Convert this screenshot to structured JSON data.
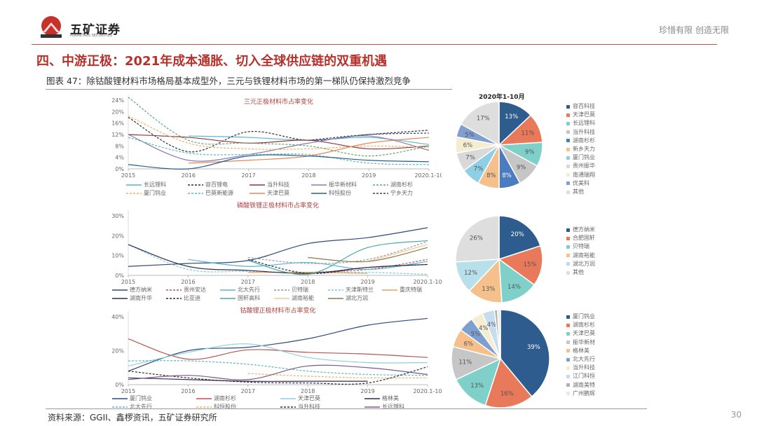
{
  "header": {
    "brand": "五矿证券",
    "brand_en": "MINMETALS SECURITIES",
    "slogan": "珍惜有限  创造无限",
    "title": "四、中游正极：2021年成本通胀、切入全球供应链的双重机遇",
    "subtitle": "图表 47：除钴酸锂材料市场格局基本成型外，三元与铁锂材料市场的第一梯队仍保持激烈竞争"
  },
  "footer": {
    "source": "资料来源：GGII、鑫椤资讯，五矿证券研究所",
    "page": "30"
  },
  "chart_data": [
    {
      "type": "line",
      "title": "三元正极材料市占率变化",
      "categories": [
        "2015",
        "2016",
        "2017",
        "2018",
        "2019",
        "2020.1-10"
      ],
      "yticks": [
        "0%",
        "4%",
        "8%",
        "12%",
        "16%",
        "20%",
        "24%"
      ],
      "ylim": [
        0,
        24
      ],
      "grid": false,
      "legend": "bottom",
      "series": [
        {
          "name": "长远锂科",
          "color": "#5ab4d6",
          "dash": false,
          "values": [
            null,
            11.5,
            11,
            10,
            11,
            8.5
          ]
        },
        {
          "name": "容百锂电",
          "color": "#2b2b3a",
          "dash": true,
          "values": [
            18,
            6,
            13,
            10,
            12,
            13.5
          ]
        },
        {
          "name": "当升科技",
          "color": "#8b3a3a",
          "dash": false,
          "values": [
            12,
            11,
            9,
            10,
            7,
            8
          ]
        },
        {
          "name": "振华新材料",
          "color": "#8a7bb0",
          "dash": false,
          "values": [
            12,
            3,
            5,
            9,
            11.5,
            6.5
          ]
        },
        {
          "name": "湖南杉杉",
          "color": "#5aa870",
          "dash": true,
          "values": [
            25,
            10,
            9,
            8,
            4.5,
            8
          ]
        },
        {
          "name": "厦门钨业",
          "color": "#f0b060",
          "dash": true,
          "values": [
            18.5,
            9,
            7,
            7,
            8,
            7.5
          ]
        },
        {
          "name": "巴莫新能源",
          "color": "#5fb8c0",
          "dash": true,
          "values": [
            11,
            5.5,
            5,
            5,
            2,
            1.5
          ]
        },
        {
          "name": "天津巴莫",
          "color": "#e8875a",
          "dash": false,
          "values": [
            null,
            2,
            3,
            4.5,
            9,
            11
          ]
        },
        {
          "name": "科恒股份",
          "color": "#2a5f8a",
          "dash": false,
          "values": [
            1.5,
            0,
            4.5,
            4.5,
            3,
            2.5
          ]
        },
        {
          "name": "宁乡天力",
          "color": "#3a3f6a",
          "dash": true,
          "values": [
            null,
            null,
            null,
            10,
            12,
            12.5
          ]
        }
      ]
    },
    {
      "type": "line",
      "title": "磷酸铁锂正极材料市占率变化",
      "categories": [
        "2015",
        "2016",
        "2017",
        "2018",
        "2019",
        "2020.1-10"
      ],
      "yticks": [
        "0%",
        "10%",
        "20%",
        "30%"
      ],
      "ylim": [
        0,
        30
      ],
      "grid": false,
      "legend": "bottom",
      "series": [
        {
          "name": "德方纳米",
          "color": "#2e4a7a",
          "dash": false,
          "values": [
            4.5,
            6,
            7.5,
            16,
            19,
            24
          ]
        },
        {
          "name": "贵州安达",
          "color": "#c0504d",
          "dash": true,
          "values": [
            null,
            null,
            null,
            1.5,
            3,
            8
          ]
        },
        {
          "name": "北大先行",
          "color": "#5ab4d6",
          "dash": false,
          "values": [
            null,
            8,
            4.5,
            6.5,
            3,
            7
          ]
        },
        {
          "name": "贝特瑞",
          "color": "#999999",
          "dash": true,
          "values": [
            null,
            null,
            9,
            6,
            8,
            17
          ]
        },
        {
          "name": "天津斯特兰",
          "color": "#7fc8d8",
          "dash": true,
          "values": [
            15.5,
            3,
            2,
            1.5,
            1.5,
            0.5
          ]
        },
        {
          "name": "重庆特瑞",
          "color": "#e8a060",
          "dash": false,
          "values": [
            null,
            null,
            1.5,
            1.5,
            1,
            null
          ]
        },
        {
          "name": "湖南升华",
          "color": "#2b3050",
          "dash": false,
          "values": [
            15.5,
            4.5,
            2.5,
            1,
            4,
            5.5
          ]
        },
        {
          "name": "比亚迪",
          "color": "#2b2b3a",
          "dash": true,
          "values": [
            null,
            null,
            8,
            1,
            4,
            5.5
          ]
        },
        {
          "name": "国轩高科",
          "color": "#4aa8a8",
          "dash": false,
          "values": [
            null,
            null,
            7.5,
            0.5,
            14,
            17.5
          ]
        },
        {
          "name": "湖南裕能",
          "color": "#f5c890",
          "dash": false,
          "values": [
            null,
            null,
            null,
            null,
            7,
            15.5
          ]
        },
        {
          "name": "湖北万润",
          "color": "#8a7a50",
          "dash": false,
          "values": [
            null,
            null,
            null,
            9,
            7,
            14
          ]
        }
      ]
    },
    {
      "type": "line",
      "title": "钴酸锂正极材料市占率变化",
      "categories": [
        "2015",
        "2016",
        "2017",
        "2018",
        "2019",
        "2020.1-10"
      ],
      "yticks": [
        "0%",
        "20%",
        "40%"
      ],
      "ylim": [
        0,
        40
      ],
      "grid": false,
      "legend": "bottom",
      "series": [
        {
          "name": "厦门钨业",
          "color": "#2e4a7a",
          "dash": false,
          "values": [
            8,
            20,
            22,
            27,
            35,
            39
          ]
        },
        {
          "name": "湖南杉杉",
          "color": "#b85450",
          "dash": false,
          "values": [
            27,
            15,
            20.5,
            19,
            18,
            16
          ]
        },
        {
          "name": "天津巴莫",
          "color": "#8ed0e0",
          "dash": false,
          "values": [
            11,
            19,
            24,
            16,
            13,
            13
          ]
        },
        {
          "name": "格林美",
          "color": "#3a2a4a",
          "dash": false,
          "values": [
            4,
            3,
            2,
            2,
            2,
            null
          ]
        },
        {
          "name": "北大先行",
          "color": "#5fb8c0",
          "dash": true,
          "values": [
            14,
            14,
            12,
            8,
            6,
            5.5
          ]
        },
        {
          "name": "科恒股份",
          "color": "#f0b060",
          "dash": true,
          "values": [
            null,
            null,
            6.5,
            5,
            4,
            4
          ]
        },
        {
          "name": "当升科技",
          "color": "#2b2b3a",
          "dash": true,
          "values": [
            8,
            4,
            1.5,
            1,
            1,
            10.5
          ]
        },
        {
          "name": "长远锂科",
          "color": "#7a5a8a",
          "dash": false,
          "values": [
            3,
            5.5,
            3,
            11,
            10,
            6
          ]
        }
      ]
    },
    {
      "type": "pie",
      "title": "2020年1-10月",
      "legend": "right",
      "slices": [
        {
          "name": "容百科技",
          "value": 13,
          "color": "#2e5c8f"
        },
        {
          "name": "天津巴莫",
          "value": 11,
          "color": "#e8795a"
        },
        {
          "name": "长远锂科",
          "value": 9,
          "color": "#7ed0c9"
        },
        {
          "name": "当升科技",
          "value": 9,
          "color": "#c6c6c6"
        },
        {
          "name": "湖南杉杉",
          "value": 8,
          "color": "#4a7cc0"
        },
        {
          "name": "新乡天力",
          "value": 8,
          "color": "#f5c08c"
        },
        {
          "name": "厦门钨业",
          "value": 7,
          "color": "#8ecfe3"
        },
        {
          "name": "贵州振华",
          "value": 7,
          "color": "#d9d9d9"
        },
        {
          "name": "南通瑞翔",
          "value": 6,
          "color": "#f5edcf"
        },
        {
          "name": "优美科",
          "value": 5,
          "color": "#7f9fd0"
        },
        {
          "name": "其他",
          "value": 17,
          "color": "#dedede"
        }
      ]
    },
    {
      "type": "pie",
      "legend": "right",
      "slices": [
        {
          "name": "德方纳米",
          "value": 20,
          "color": "#2e5c8f"
        },
        {
          "name": "合肥国轩",
          "value": 15,
          "color": "#e8795a"
        },
        {
          "name": "贝特瑞",
          "value": 14,
          "color": "#7ed0c9"
        },
        {
          "name": "湖南裕能",
          "value": 13,
          "color": "#f5c08c"
        },
        {
          "name": "湖北万润",
          "value": 12,
          "color": "#b8e0ea"
        },
        {
          "name": "其他",
          "value": 26,
          "color": "#dedede"
        }
      ]
    },
    {
      "type": "pie",
      "legend": "right",
      "slices": [
        {
          "name": "厦门钨业",
          "value": 39,
          "color": "#2e5c8f"
        },
        {
          "name": "湖南杉杉",
          "value": 16,
          "color": "#e8795a"
        },
        {
          "name": "天津巴莫",
          "value": 13,
          "color": "#7ed0c9"
        },
        {
          "name": "振华新材",
          "value": 11,
          "color": "#c6c6c6"
        },
        {
          "name": "格林美",
          "value": 6,
          "color": "#f5c08c"
        },
        {
          "name": "北大先行",
          "value": 5,
          "color": "#7f9fd0"
        },
        {
          "name": "当升科技",
          "value": 4,
          "color": "#f5edcf"
        },
        {
          "name": "江门科恒",
          "value": 4,
          "color": "#c8dcf0"
        },
        {
          "name": "湖南美特",
          "value": 1,
          "color": "#b0b0b0"
        },
        {
          "name": "广州鹏辉",
          "value": 1,
          "color": "#e8e8e8"
        }
      ]
    }
  ]
}
